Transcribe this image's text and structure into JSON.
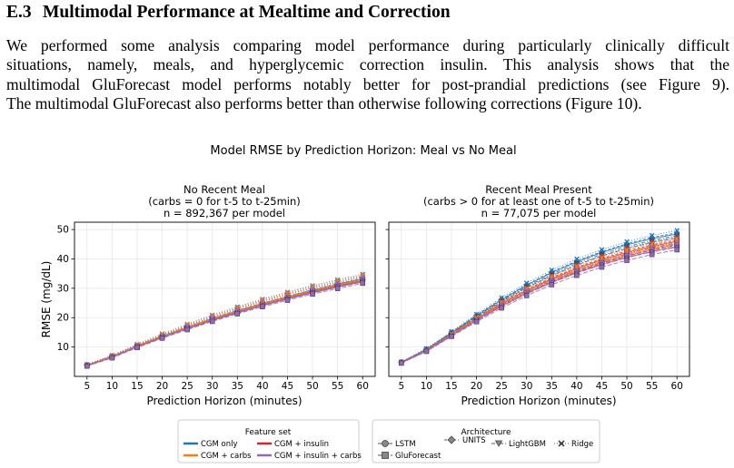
{
  "section": {
    "number": "E.3",
    "title": "Multimodal Performance at Mealtime and Correction"
  },
  "paragraph": {
    "lines": [
      "We performed some analysis comparing model performance during particularly clinically difficult",
      "situations, namely, meals, and hyperglycemic correction insulin.  This analysis shows that the",
      "multimodal GluForecast model performs notably better for post-prandial predictions (see Figure 9).",
      "The multimodal GluForecast also performs better than otherwise following corrections (Figure 10)."
    ]
  },
  "figure": {
    "suptitle": "Model RMSE by Prediction Horizon: Meal vs No Meal",
    "ylabel": "RMSE (mg/dL)",
    "xlabel": "Prediction Horizon (minutes)",
    "legend_feature": {
      "title": "Feature set",
      "items": [
        "CGM only",
        "CGM + insulin",
        "CGM + carbs",
        "CGM + insulin + carbs"
      ]
    },
    "legend_arch": {
      "title": "Architecture",
      "items": [
        "LSTM",
        "UNITS",
        "LightGBM",
        "Ridge",
        "GluForecast"
      ]
    }
  },
  "colors": {
    "CGM only": "#1f77b4",
    "CGM + carbs": "#ff7f0e",
    "CGM + insulin": "#d62728",
    "CGM + insulin + carbs": "#9467bd"
  },
  "chart_data": [
    {
      "type": "line",
      "title_lines": [
        "No Recent Meal",
        "(carbs = 0 for t-5 to t-25min)",
        "n = 892,367 per model"
      ],
      "x": [
        5,
        10,
        15,
        20,
        25,
        30,
        35,
        40,
        45,
        50,
        55,
        60
      ],
      "xlabel": "Prediction Horizon (minutes)",
      "ylabel": "RMSE (mg/dL)",
      "xlim": [
        2.5,
        62.5
      ],
      "ylim": [
        0,
        52.5
      ],
      "yticks": [
        10,
        20,
        30,
        40,
        50
      ],
      "grid": true,
      "series": [
        {
          "name": "CGM only",
          "architecture": "LSTM",
          "values": [
            3.8,
            6.7,
            10.3,
            13.6,
            16.7,
            19.6,
            22.3,
            24.8,
            27.1,
            29.3,
            31.3,
            33.2
          ]
        },
        {
          "name": "CGM only",
          "architecture": "UNITS",
          "values": [
            3.9,
            6.9,
            10.5,
            13.8,
            16.9,
            19.8,
            22.5,
            25.0,
            27.3,
            29.5,
            31.6,
            33.5
          ]
        },
        {
          "name": "CGM only",
          "architecture": "LightGBM",
          "values": [
            3.8,
            6.8,
            10.4,
            13.7,
            16.8,
            19.7,
            22.4,
            24.9,
            27.2,
            29.4,
            31.4,
            33.3
          ]
        },
        {
          "name": "CGM only",
          "architecture": "Ridge",
          "values": [
            4.1,
            7.2,
            11.0,
            14.5,
            17.8,
            20.9,
            23.7,
            26.3,
            28.7,
            30.9,
            32.9,
            34.8
          ]
        },
        {
          "name": "CGM only",
          "architecture": "GluForecast",
          "values": [
            3.7,
            6.6,
            10.2,
            13.5,
            16.6,
            19.5,
            22.2,
            24.6,
            26.9,
            29.0,
            31.0,
            32.8
          ]
        },
        {
          "name": "CGM + insulin",
          "architecture": "LSTM",
          "values": [
            3.7,
            6.6,
            10.1,
            13.3,
            16.4,
            19.2,
            21.9,
            24.3,
            26.6,
            28.7,
            30.7,
            32.5
          ]
        },
        {
          "name": "CGM + insulin",
          "architecture": "UNITS",
          "values": [
            3.8,
            6.7,
            10.3,
            13.5,
            16.6,
            19.5,
            22.1,
            24.6,
            26.9,
            29.0,
            31.0,
            32.9
          ]
        },
        {
          "name": "CGM + insulin",
          "architecture": "LightGBM",
          "values": [
            3.7,
            6.6,
            10.2,
            13.4,
            16.5,
            19.4,
            22.0,
            24.5,
            26.8,
            28.9,
            30.8,
            32.7
          ]
        },
        {
          "name": "CGM + insulin",
          "architecture": "Ridge",
          "values": [
            4.0,
            7.0,
            10.7,
            14.1,
            17.3,
            20.3,
            23.1,
            25.7,
            28.0,
            30.2,
            32.2,
            34.1
          ]
        },
        {
          "name": "CGM + insulin",
          "architecture": "GluForecast",
          "values": [
            3.6,
            6.5,
            10.0,
            13.2,
            16.2,
            19.0,
            21.7,
            24.1,
            26.4,
            28.5,
            30.4,
            32.2
          ]
        },
        {
          "name": "CGM + carbs",
          "architecture": "LSTM",
          "values": [
            3.8,
            6.7,
            10.2,
            13.5,
            16.6,
            19.5,
            22.1,
            24.6,
            26.9,
            29.1,
            31.1,
            32.9
          ]
        },
        {
          "name": "CGM + carbs",
          "architecture": "UNITS",
          "values": [
            3.9,
            6.8,
            10.4,
            13.7,
            16.8,
            19.7,
            22.4,
            24.9,
            27.2,
            29.3,
            31.4,
            33.3
          ]
        },
        {
          "name": "CGM + carbs",
          "architecture": "LightGBM",
          "values": [
            3.8,
            6.7,
            10.3,
            13.6,
            16.7,
            19.6,
            22.3,
            24.8,
            27.1,
            29.2,
            31.2,
            33.1
          ]
        },
        {
          "name": "CGM + carbs",
          "architecture": "Ridge",
          "values": [
            4.0,
            7.1,
            10.9,
            14.3,
            17.6,
            20.6,
            23.4,
            26.0,
            28.4,
            30.6,
            32.6,
            34.5
          ]
        },
        {
          "name": "CGM + carbs",
          "architecture": "GluForecast",
          "values": [
            3.7,
            6.6,
            10.1,
            13.4,
            16.4,
            19.3,
            21.9,
            24.4,
            26.7,
            28.8,
            30.8,
            32.6
          ]
        },
        {
          "name": "CGM + insulin + carbs",
          "architecture": "LSTM",
          "values": [
            3.6,
            6.5,
            10.0,
            13.2,
            16.2,
            19.0,
            21.6,
            24.1,
            26.3,
            28.4,
            30.4,
            32.2
          ]
        },
        {
          "name": "CGM + insulin + carbs",
          "architecture": "UNITS",
          "values": [
            3.7,
            6.6,
            10.1,
            13.4,
            16.4,
            19.3,
            21.9,
            24.4,
            26.6,
            28.8,
            30.8,
            32.6
          ]
        },
        {
          "name": "CGM + insulin + carbs",
          "architecture": "LightGBM",
          "values": [
            3.7,
            6.5,
            10.0,
            13.3,
            16.3,
            19.2,
            21.8,
            24.2,
            26.5,
            28.6,
            30.6,
            32.4
          ]
        },
        {
          "name": "CGM + insulin + carbs",
          "architecture": "Ridge",
          "values": [
            3.9,
            6.9,
            10.6,
            14.0,
            17.2,
            20.1,
            22.9,
            25.5,
            27.8,
            30.0,
            32.0,
            33.9
          ]
        },
        {
          "name": "CGM + insulin + carbs",
          "architecture": "GluForecast",
          "values": [
            3.5,
            6.3,
            9.8,
            13.0,
            15.9,
            18.7,
            21.3,
            23.7,
            25.9,
            28.0,
            29.9,
            31.7
          ]
        }
      ]
    },
    {
      "type": "line",
      "title_lines": [
        "Recent Meal Present",
        "(carbs > 0 for at least one of t-5 to t-25min)",
        "n = 77,075 per model"
      ],
      "x": [
        5,
        10,
        15,
        20,
        25,
        30,
        35,
        40,
        45,
        50,
        55,
        60
      ],
      "xlabel": "Prediction Horizon (minutes)",
      "ylabel": "RMSE (mg/dL)",
      "xlim": [
        2.5,
        62.5
      ],
      "ylim": [
        0,
        52.5
      ],
      "yticks": [
        10,
        20,
        30,
        40,
        50
      ],
      "grid": true,
      "series": [
        {
          "name": "CGM only",
          "architecture": "LSTM",
          "values": [
            4.8,
            9.2,
            14.8,
            20.6,
            26.1,
            31.0,
            35.3,
            39.0,
            42.2,
            44.8,
            46.9,
            48.5
          ]
        },
        {
          "name": "CGM only",
          "architecture": "UNITS",
          "values": [
            4.9,
            9.3,
            15.0,
            20.8,
            26.3,
            31.2,
            35.6,
            39.3,
            42.5,
            45.2,
            47.3,
            48.9
          ]
        },
        {
          "name": "CGM only",
          "architecture": "LightGBM",
          "values": [
            4.8,
            9.1,
            14.7,
            20.4,
            25.8,
            30.6,
            34.8,
            38.5,
            41.6,
            44.2,
            46.3,
            47.9
          ]
        },
        {
          "name": "CGM only",
          "architecture": "Ridge",
          "values": [
            5.0,
            9.5,
            15.3,
            21.2,
            26.8,
            31.8,
            36.2,
            40.0,
            43.2,
            45.9,
            48.0,
            49.7
          ]
        },
        {
          "name": "CGM only",
          "architecture": "GluForecast",
          "values": [
            4.7,
            9.0,
            14.5,
            20.1,
            25.4,
            30.2,
            34.3,
            37.9,
            41.0,
            43.5,
            45.6,
            47.2
          ]
        },
        {
          "name": "CGM + insulin",
          "architecture": "LSTM",
          "values": [
            4.7,
            8.9,
            14.3,
            19.7,
            24.8,
            29.3,
            33.2,
            36.7,
            39.7,
            42.2,
            44.3,
            46.0
          ]
        },
        {
          "name": "CGM + insulin",
          "architecture": "UNITS",
          "values": [
            4.8,
            9.0,
            14.5,
            19.9,
            25.0,
            29.6,
            33.6,
            37.1,
            40.1,
            42.7,
            44.8,
            46.5
          ]
        },
        {
          "name": "CGM + insulin",
          "architecture": "LightGBM",
          "values": [
            4.7,
            8.8,
            14.1,
            19.4,
            24.4,
            28.9,
            32.8,
            36.2,
            39.2,
            41.7,
            43.8,
            45.5
          ]
        },
        {
          "name": "CGM + insulin",
          "architecture": "Ridge",
          "values": [
            4.9,
            9.2,
            14.8,
            20.3,
            25.6,
            30.3,
            34.4,
            38.0,
            41.1,
            43.7,
            45.9,
            47.6
          ]
        },
        {
          "name": "CGM + insulin",
          "architecture": "GluForecast",
          "values": [
            4.6,
            8.7,
            13.9,
            19.1,
            24.0,
            28.4,
            32.2,
            35.6,
            38.5,
            41.0,
            43.0,
            44.7
          ]
        },
        {
          "name": "CGM + carbs",
          "architecture": "LSTM",
          "values": [
            4.7,
            8.9,
            14.2,
            19.5,
            24.5,
            28.9,
            32.8,
            36.2,
            39.1,
            41.6,
            43.6,
            45.2
          ]
        },
        {
          "name": "CGM + carbs",
          "architecture": "UNITS",
          "values": [
            4.8,
            9.0,
            14.4,
            19.8,
            24.9,
            29.4,
            33.4,
            36.8,
            39.8,
            42.3,
            44.4,
            46.1
          ]
        },
        {
          "name": "CGM + carbs",
          "architecture": "LightGBM",
          "values": [
            4.7,
            8.8,
            14.1,
            19.3,
            24.3,
            28.7,
            32.5,
            35.9,
            38.8,
            41.2,
            43.2,
            44.9
          ]
        },
        {
          "name": "CGM + carbs",
          "architecture": "Ridge",
          "values": [
            4.9,
            9.1,
            14.6,
            20.1,
            25.3,
            29.9,
            34.0,
            37.5,
            40.5,
            43.1,
            45.2,
            46.9
          ]
        },
        {
          "name": "CGM + carbs",
          "architecture": "GluForecast",
          "values": [
            4.6,
            8.6,
            13.8,
            19.0,
            23.8,
            28.1,
            31.9,
            35.2,
            38.0,
            40.4,
            42.4,
            44.0
          ]
        },
        {
          "name": "CGM + insulin + carbs",
          "architecture": "LSTM",
          "values": [
            4.6,
            8.7,
            13.9,
            19.1,
            24.0,
            28.3,
            32.1,
            35.4,
            38.2,
            40.6,
            42.6,
            44.2
          ]
        },
        {
          "name": "CGM + insulin + carbs",
          "architecture": "UNITS",
          "values": [
            4.7,
            8.8,
            14.1,
            19.3,
            24.3,
            28.7,
            32.6,
            35.9,
            38.8,
            41.2,
            43.2,
            44.9
          ]
        },
        {
          "name": "CGM + insulin + carbs",
          "architecture": "LightGBM",
          "values": [
            4.6,
            8.6,
            13.8,
            18.9,
            23.8,
            28.1,
            31.9,
            35.2,
            38.0,
            40.4,
            42.4,
            44.0
          ]
        },
        {
          "name": "CGM + insulin + carbs",
          "architecture": "Ridge",
          "values": [
            4.8,
            9.0,
            14.4,
            19.7,
            24.8,
            29.3,
            33.2,
            36.6,
            39.5,
            42.0,
            44.1,
            45.8
          ]
        },
        {
          "name": "CGM + insulin + carbs",
          "architecture": "GluForecast",
          "values": [
            4.5,
            8.5,
            13.6,
            18.6,
            23.3,
            27.5,
            31.2,
            34.4,
            37.2,
            39.5,
            41.5,
            43.1
          ]
        }
      ]
    }
  ]
}
